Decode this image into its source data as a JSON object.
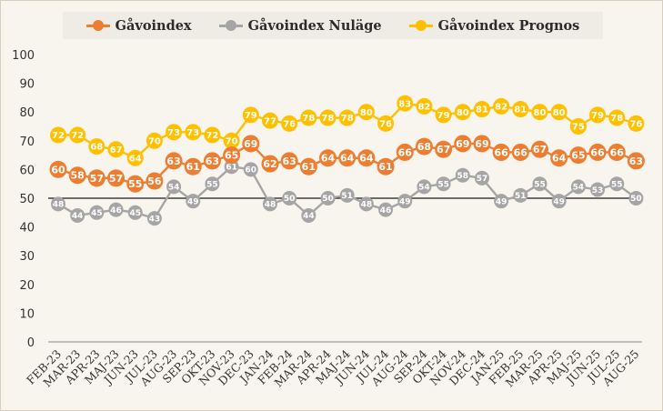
{
  "chart_data": {
    "type": "line",
    "title": "",
    "xlabel": "",
    "ylabel": "",
    "ylim": [
      0,
      100
    ],
    "yticks": [
      "0",
      "10",
      "20",
      "30",
      "40",
      "50",
      "60",
      "70",
      "80",
      "90",
      "100"
    ],
    "grid": false,
    "reference_line": 50,
    "legend_position": "top",
    "categories": [
      "FEB-23",
      "MAR-23",
      "APR-23",
      "MAJ-23",
      "JUN-23",
      "JUL-23",
      "AUG-23",
      "SEP-23",
      "OKT-23",
      "NOV-23",
      "DEC-23",
      "JAN-24",
      "FEB-24",
      "MAR-24",
      "APR-24",
      "MAJ-24",
      "JUN-24",
      "JUL-24",
      "AUG-24",
      "SEP-24",
      "OKT-24",
      "NOV-24",
      "DEC-24",
      "JAN-25",
      "FEB-25",
      "MAR-25",
      "APR-25",
      "MAJ-25",
      "JUN-25",
      "JUL-25",
      "AUG-25"
    ],
    "series": [
      {
        "name": "Gåvoindex",
        "color": "#ed7d31",
        "values": [
          60,
          58,
          57,
          57,
          55,
          56,
          63,
          61,
          63,
          65,
          69,
          62,
          63,
          61,
          64,
          64,
          64,
          61,
          66,
          68,
          67,
          69,
          69,
          66,
          66,
          67,
          64,
          65,
          66,
          66,
          63
        ]
      },
      {
        "name": "Gåvoindex Nuläge",
        "color": "#a5a5a5",
        "values": [
          48,
          44,
          45,
          46,
          45,
          43,
          54,
          49,
          55,
          61,
          60,
          48,
          50,
          44,
          50,
          51,
          48,
          46,
          49,
          54,
          55,
          58,
          57,
          49,
          51,
          55,
          49,
          54,
          53,
          55,
          50
        ]
      },
      {
        "name": "Gåvoindex Prognos",
        "color": "#ffc000",
        "values": [
          72,
          72,
          68,
          67,
          64,
          70,
          73,
          73,
          72,
          70,
          79,
          77,
          76,
          78,
          78,
          78,
          80,
          76,
          83,
          82,
          79,
          80,
          81,
          82,
          81,
          80,
          80,
          75,
          79,
          78,
          76
        ]
      }
    ]
  }
}
